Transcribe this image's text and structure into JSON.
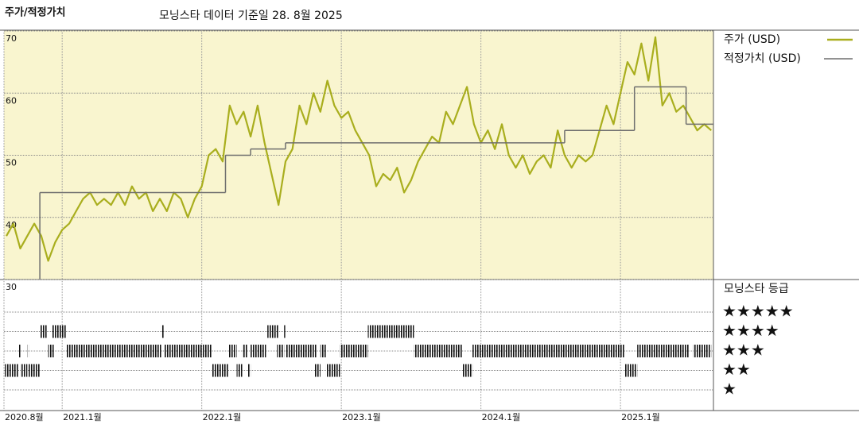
{
  "chart_data": {
    "type": "line",
    "title": "주가/적정가치",
    "subtitle": "모닝스타 데이터 기준일 28. 8월 2025",
    "xlim": [
      2020.583,
      2025.666
    ],
    "xticks": [
      {
        "value": 2020.583,
        "label": "2020.8월"
      },
      {
        "value": 2021,
        "label": "2021.1월"
      },
      {
        "value": 2022,
        "label": "2022.1월"
      },
      {
        "value": 2023,
        "label": "2023.1월"
      },
      {
        "value": 2024,
        "label": "2024.1월"
      },
      {
        "value": 2025,
        "label": "2025.1월"
      }
    ],
    "ylim": [
      30,
      70
    ],
    "yticks": [
      30,
      40,
      50,
      60,
      70
    ],
    "grid": true,
    "series": [
      {
        "name": "주가 (USD)",
        "color": "#a9ae1e",
        "x": [
          2020.6,
          2020.65,
          2020.7,
          2020.75,
          2020.8,
          2020.85,
          2020.9,
          2020.95,
          2021.0,
          2021.05,
          2021.1,
          2021.15,
          2021.2,
          2021.25,
          2021.3,
          2021.35,
          2021.4,
          2021.45,
          2021.5,
          2021.55,
          2021.6,
          2021.65,
          2021.7,
          2021.75,
          2021.8,
          2021.85,
          2021.9,
          2021.95,
          2022.0,
          2022.05,
          2022.1,
          2022.15,
          2022.2,
          2022.25,
          2022.3,
          2022.35,
          2022.4,
          2022.45,
          2022.5,
          2022.55,
          2022.6,
          2022.65,
          2022.7,
          2022.75,
          2022.8,
          2022.85,
          2022.9,
          2022.95,
          2023.0,
          2023.05,
          2023.1,
          2023.15,
          2023.2,
          2023.25,
          2023.3,
          2023.35,
          2023.4,
          2023.45,
          2023.5,
          2023.55,
          2023.6,
          2023.65,
          2023.7,
          2023.75,
          2023.8,
          2023.85,
          2023.9,
          2023.95,
          2024.0,
          2024.05,
          2024.1,
          2024.15,
          2024.2,
          2024.25,
          2024.3,
          2024.35,
          2024.4,
          2024.45,
          2024.5,
          2024.55,
          2024.6,
          2024.65,
          2024.7,
          2024.75,
          2024.8,
          2024.85,
          2024.9,
          2024.95,
          2025.0,
          2025.05,
          2025.1,
          2025.15,
          2025.2,
          2025.25,
          2025.3,
          2025.35,
          2025.4,
          2025.45,
          2025.5,
          2025.55,
          2025.6,
          2025.65
        ],
        "values": [
          37,
          39,
          35,
          37,
          39,
          37,
          33,
          36,
          38,
          39,
          41,
          43,
          44,
          42,
          43,
          42,
          44,
          42,
          45,
          43,
          44,
          41,
          43,
          41,
          44,
          43,
          40,
          43,
          45,
          50,
          51,
          49,
          58,
          55,
          57,
          53,
          58,
          52,
          47,
          42,
          49,
          51,
          58,
          55,
          60,
          57,
          62,
          58,
          56,
          57,
          54,
          52,
          50,
          45,
          47,
          46,
          48,
          44,
          46,
          49,
          51,
          53,
          52,
          57,
          55,
          58,
          61,
          55,
          52,
          54,
          51,
          55,
          50,
          48,
          50,
          47,
          49,
          50,
          48,
          54,
          50,
          48,
          50,
          49,
          50,
          54,
          58,
          55,
          60,
          65,
          63,
          68,
          62,
          69,
          58,
          60,
          57,
          58,
          56,
          54,
          55,
          54
        ]
      },
      {
        "name": "적정가치 (USD)",
        "color": "#6e6e6e",
        "step": true,
        "x": [
          2020.84,
          2022.17,
          2022.35,
          2022.6,
          2024.6,
          2025.1,
          2025.47
        ],
        "values": [
          44,
          50,
          51,
          52,
          54,
          61,
          55
        ]
      }
    ],
    "ratings": {
      "title": "모닝스타 등급",
      "levels": [
        {
          "value": 5,
          "label": "★★★★★"
        },
        {
          "value": 4,
          "label": "★★★★"
        },
        {
          "value": 3,
          "label": "★★★"
        },
        {
          "value": 2,
          "label": "★★"
        },
        {
          "value": 1,
          "label": "★"
        }
      ],
      "periods": [
        {
          "stars": 2,
          "start": 2020.59,
          "end": 2020.69
        },
        {
          "stars": 3,
          "start": 2020.69,
          "end": 2020.7
        },
        {
          "stars": 2,
          "start": 2020.7,
          "end": 2020.75
        },
        {
          "stars": 3,
          "start": 2020.75,
          "end": 2020.76
        },
        {
          "stars": 2,
          "start": 2020.76,
          "end": 2020.84
        },
        {
          "stars": 4,
          "start": 2020.84,
          "end": 2020.89
        },
        {
          "stars": 3,
          "start": 2020.9,
          "end": 2020.94
        },
        {
          "stars": 4,
          "start": 2020.93,
          "end": 2021.03
        },
        {
          "stars": 3,
          "start": 2021.03,
          "end": 2021.71
        },
        {
          "stars": 4,
          "start": 2021.71,
          "end": 2021.73
        },
        {
          "stars": 3,
          "start": 2021.73,
          "end": 2022.07
        },
        {
          "stars": 2,
          "start": 2022.07,
          "end": 2022.19
        },
        {
          "stars": 3,
          "start": 2022.19,
          "end": 2022.25
        },
        {
          "stars": 2,
          "start": 2022.25,
          "end": 2022.29
        },
        {
          "stars": 3,
          "start": 2022.29,
          "end": 2022.33
        },
        {
          "stars": 2,
          "start": 2022.33,
          "end": 2022.35
        },
        {
          "stars": 3,
          "start": 2022.35,
          "end": 2022.46
        },
        {
          "stars": 4,
          "start": 2022.47,
          "end": 2022.55
        },
        {
          "stars": 3,
          "start": 2022.54,
          "end": 2022.59
        },
        {
          "stars": 4,
          "start": 2022.59,
          "end": 2022.6
        },
        {
          "stars": 3,
          "start": 2022.6,
          "end": 2022.82
        },
        {
          "stars": 2,
          "start": 2022.81,
          "end": 2022.85
        },
        {
          "stars": 3,
          "start": 2022.85,
          "end": 2022.89
        },
        {
          "stars": 2,
          "start": 2022.89,
          "end": 2022.99
        },
        {
          "stars": 3,
          "start": 2022.99,
          "end": 2023.19
        },
        {
          "stars": 4,
          "start": 2023.19,
          "end": 2023.52
        },
        {
          "stars": 3,
          "start": 2023.52,
          "end": 2023.87
        },
        {
          "stars": 2,
          "start": 2023.87,
          "end": 2023.94
        },
        {
          "stars": 3,
          "start": 2023.94,
          "end": 2025.03
        },
        {
          "stars": 2,
          "start": 2025.03,
          "end": 2025.12
        },
        {
          "stars": 3,
          "start": 2025.12,
          "end": 2025.49
        },
        {
          "stars": 3,
          "start": 2025.52,
          "end": 2025.65
        }
      ]
    }
  }
}
